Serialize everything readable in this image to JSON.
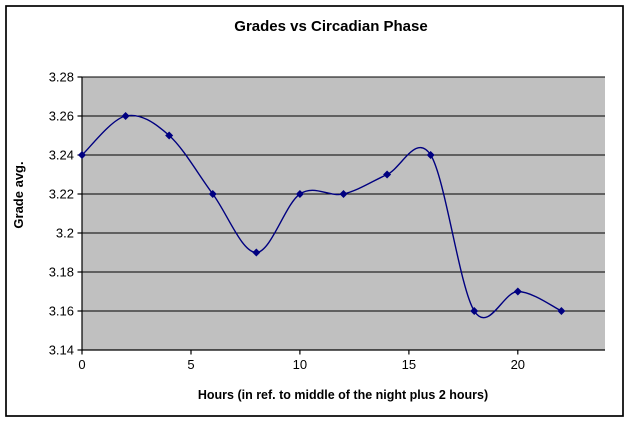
{
  "chart_data": {
    "type": "line",
    "title": "Grades vs Circadian Phase",
    "xlabel": "Hours (in ref. to middle of the night plus 2 hours)",
    "ylabel": "Grade avg.",
    "x": [
      0,
      2,
      4,
      6,
      8,
      10,
      12,
      14,
      16,
      18,
      20,
      22
    ],
    "y": [
      3.24,
      3.26,
      3.25,
      3.22,
      3.19,
      3.22,
      3.22,
      3.23,
      3.24,
      3.16,
      3.17,
      3.16
    ],
    "xlim": [
      0,
      24
    ],
    "ylim": [
      3.14,
      3.28
    ],
    "xticks": [
      0,
      5,
      10,
      15,
      20
    ],
    "xtick_labels": [
      "0",
      "5",
      "10",
      "15",
      "20"
    ],
    "yticks": [
      3.14,
      3.16,
      3.18,
      3.2,
      3.22,
      3.24,
      3.26,
      3.28
    ],
    "ytick_labels": [
      "3.14",
      "3.16",
      "3.18",
      "3.2",
      "3.22",
      "3.24",
      "3.26",
      "3.28"
    ],
    "smoothed_line": true,
    "marker": "diamond",
    "legend": "none",
    "grid": "horizontal",
    "colors": {
      "line": "#000080",
      "marker": "#000080",
      "plot_bg": "#C0C0C0",
      "gridline": "#000000",
      "axis": "#000000",
      "frame_border": "#000000",
      "background": "#FFFFFF",
      "text": "#000000"
    }
  }
}
